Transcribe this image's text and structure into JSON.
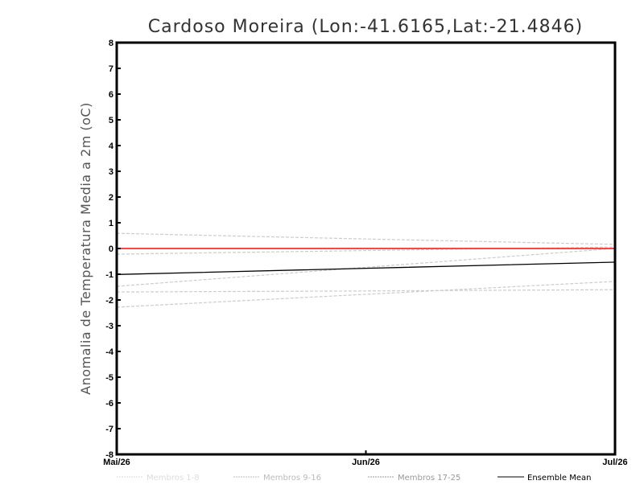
{
  "chart_data": {
    "type": "line",
    "title": "Cardoso Moreira (Lon:-41.6165,Lat:-21.4846)",
    "xlabel": "",
    "ylabel": "Anomalia de Temperatura Media a 2m (oC)",
    "categories": [
      "Mai/26",
      "Jun/26",
      "Jul/26"
    ],
    "ylim": [
      -8,
      8
    ],
    "yticks": [
      "-8",
      "-7",
      "-6",
      "-5",
      "-4",
      "-3",
      "-2",
      "-1",
      "0",
      "1",
      "2",
      "3",
      "4",
      "5",
      "6",
      "7",
      "8"
    ],
    "grid": false,
    "legend_placement": "bottom",
    "legend": [
      "Membros 1-8",
      "Membros 9-16",
      "Membros 17-25",
      "Ensemble Mean"
    ],
    "legend_colors": [
      "#dddddd",
      "#bbbbbb",
      "#999999",
      "#000000"
    ],
    "series": [
      {
        "name": "Membro",
        "color": "#cccccc",
        "dashed": true,
        "values": [
          0.59,
          0.37,
          0.16
        ]
      },
      {
        "name": "Membro",
        "color": "#cccccc",
        "dashed": true,
        "values": [
          -0.22,
          -0.08,
          0.06
        ]
      },
      {
        "name": "Membro",
        "color": "#cccccc",
        "dashed": true,
        "values": [
          -1.47,
          -0.73,
          0.0
        ]
      },
      {
        "name": "Membro",
        "color": "#cccccc",
        "dashed": true,
        "values": [
          -1.69,
          -1.65,
          -1.6
        ]
      },
      {
        "name": "Membro",
        "color": "#cccccc",
        "dashed": true,
        "values": [
          -2.28,
          -1.78,
          -1.28
        ]
      },
      {
        "name": "Ensemble Mean",
        "color": "#000000",
        "dashed": false,
        "values": [
          -1.01,
          -0.77,
          -0.53
        ]
      }
    ],
    "reference_line": {
      "value": 0,
      "color": "#ff4444"
    }
  }
}
